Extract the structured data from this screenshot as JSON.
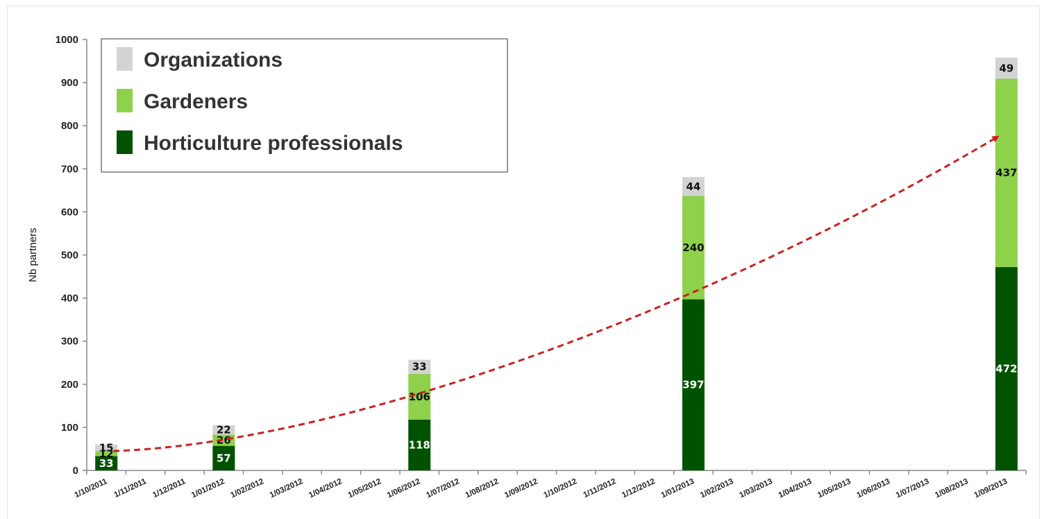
{
  "chart_data": {
    "type": "bar",
    "stacked": true,
    "ylabel": "Nb partners",
    "xlabel": "",
    "ylim": [
      0,
      1000
    ],
    "yticks": [
      0,
      100,
      200,
      300,
      400,
      500,
      600,
      700,
      800,
      900,
      1000
    ],
    "grid": false,
    "legend_position": "top-left",
    "categories": [
      "1/10/2011",
      "1/11/2011",
      "1/12/2011",
      "1/01/2012",
      "1/02/2012",
      "1/03/2012",
      "1/04/2012",
      "1/05/2012",
      "1/06/2012",
      "1/07/2012",
      "1/08/2012",
      "1/09/2012",
      "1/10/2012",
      "1/11/2012",
      "1/12/2012",
      "1/01/2013",
      "1/02/2013",
      "1/03/2013",
      "1/04/2013",
      "1/05/2013",
      "1/06/2013",
      "1/07/2013",
      "1/08/2013",
      "1/09/2013"
    ],
    "series": [
      {
        "name": "Horticulture professionals",
        "color": "#005200",
        "label_color": "#ffffff",
        "values": [
          33,
          0,
          0,
          57,
          0,
          0,
          0,
          0,
          118,
          0,
          0,
          0,
          0,
          0,
          0,
          397,
          0,
          0,
          0,
          0,
          0,
          0,
          0,
          472
        ]
      },
      {
        "name": "Gardeners",
        "color": "#8ed14a",
        "label_color": "#111111",
        "values": [
          12,
          0,
          0,
          26,
          0,
          0,
          0,
          0,
          106,
          0,
          0,
          0,
          0,
          0,
          0,
          240,
          0,
          0,
          0,
          0,
          0,
          0,
          0,
          437
        ]
      },
      {
        "name": "Organizations",
        "color": "#d3d3d3",
        "label_color": "#111111",
        "values": [
          15,
          0,
          0,
          22,
          0,
          0,
          0,
          0,
          33,
          0,
          0,
          0,
          0,
          0,
          0,
          44,
          0,
          0,
          0,
          0,
          0,
          0,
          0,
          49
        ]
      }
    ],
    "trend": {
      "style": "dashed-arrow",
      "color": "#cc1f1f"
    }
  }
}
